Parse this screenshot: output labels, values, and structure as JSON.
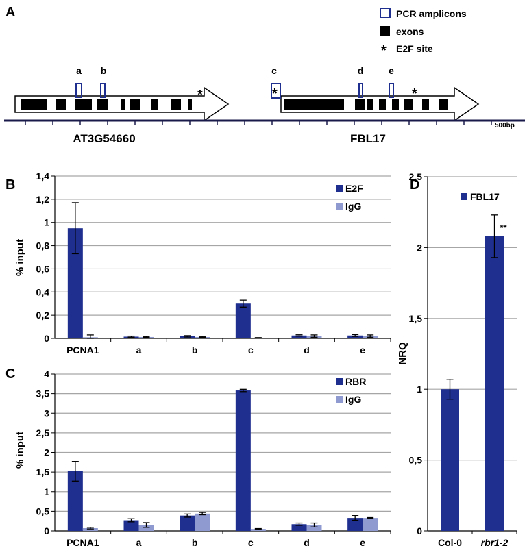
{
  "colors": {
    "primary": "#1f2f8f",
    "secondary": "#8f9ad1",
    "grid": "#a6a6a6",
    "axis": "#000000",
    "amplicon": "#1f2f8f",
    "track": "#1a1a4a"
  },
  "panel_a": {
    "letter": "A",
    "legend": {
      "pcr_amplicons": "PCR amplicons",
      "exons": "exons",
      "e2f_site": "E2F site",
      "asterisk": "*"
    },
    "genes": [
      {
        "name": "AT3G54660",
        "amplicons": [
          "a",
          "b"
        ]
      },
      {
        "name": "FBL17",
        "amplicons": [
          "c",
          "d",
          "e"
        ]
      }
    ],
    "scale": "500bp"
  },
  "chart_data": [
    {
      "panel": "B",
      "type": "bar",
      "ylabel": "% input",
      "ylim": [
        0,
        1.4
      ],
      "yticks": [
        "0",
        "0,2",
        "0,4",
        "0,6",
        "0,8",
        "1",
        "1,2",
        "1,4"
      ],
      "categories": [
        "PCNA1",
        "a",
        "b",
        "c",
        "d",
        "e"
      ],
      "series": [
        {
          "name": "E2F",
          "values": [
            0.95,
            0.015,
            0.018,
            0.3,
            0.025,
            0.025
          ],
          "errors": [
            0.22,
            0.005,
            0.006,
            0.03,
            0.006,
            0.008
          ]
        },
        {
          "name": "IgG",
          "values": [
            0.01,
            0.012,
            0.012,
            0.005,
            0.02,
            0.02
          ],
          "errors": [
            0.02,
            0.004,
            0.004,
            0.002,
            0.01,
            0.01
          ]
        }
      ],
      "grid": true,
      "legend_position": "top-right"
    },
    {
      "panel": "C",
      "type": "bar",
      "ylabel": "% input",
      "ylim": [
        0,
        4
      ],
      "yticks": [
        "0",
        "0,5",
        "1",
        "1,5",
        "2",
        "2,5",
        "3",
        "3,5",
        "4"
      ],
      "categories": [
        "PCNA1",
        "a",
        "b",
        "c",
        "d",
        "e"
      ],
      "series": [
        {
          "name": "RBR",
          "values": [
            1.52,
            0.27,
            0.39,
            3.58,
            0.17,
            0.33
          ],
          "errors": [
            0.25,
            0.04,
            0.04,
            0.03,
            0.03,
            0.06
          ]
        },
        {
          "name": "IgG",
          "values": [
            0.07,
            0.15,
            0.44,
            0.05,
            0.15,
            0.33
          ],
          "errors": [
            0.02,
            0.06,
            0.03,
            0.01,
            0.05,
            0.01
          ]
        }
      ],
      "grid": true,
      "legend_position": "top-right"
    },
    {
      "panel": "D",
      "type": "bar",
      "ylabel": "NRQ",
      "ylim": [
        0,
        2.5
      ],
      "yticks": [
        "0",
        "0,5",
        "1",
        "1,5",
        "2",
        "2,5"
      ],
      "categories": [
        "Col-0",
        "rbr1-2"
      ],
      "series": [
        {
          "name": "FBL17",
          "values": [
            1.0,
            2.08
          ],
          "errors": [
            0.07,
            0.15
          ]
        }
      ],
      "annotations": [
        {
          "category": "rbr1-2",
          "text": "**"
        }
      ],
      "grid": true,
      "legend_position": "top-right"
    }
  ]
}
